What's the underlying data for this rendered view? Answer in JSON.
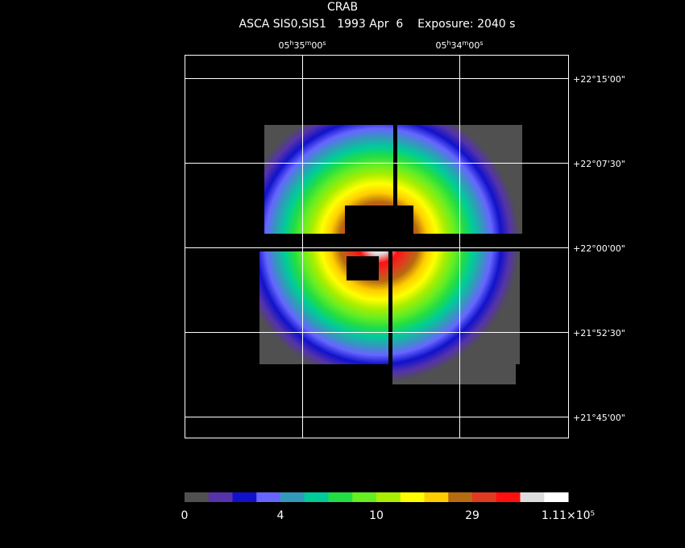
{
  "header": {
    "title": "CRAB",
    "subtitle": "ASCA SIS0,SIS1   1993 Apr  6    Exposure: 2040 s"
  },
  "ra_labels": [
    "05h35m00s",
    "05h34m00s"
  ],
  "dec_labels": [
    "+22°15'00\"",
    "+22°07'30\"",
    "+22°00'00\"",
    "+21°52'30\"",
    "+21°45'00\""
  ],
  "colorbar": {
    "colors": [
      "#505050",
      "#5533aa",
      "#1111cc",
      "#6666ff",
      "#3399bb",
      "#00cc99",
      "#22dd44",
      "#66ee22",
      "#aaee00",
      "#ffff00",
      "#ffcc00",
      "#b86a10",
      "#e03a20",
      "#ff1010",
      "#dddddd",
      "#ffffff"
    ],
    "labels": [
      "0",
      "4",
      "10",
      "29",
      "1.11×10⁵"
    ]
  }
}
